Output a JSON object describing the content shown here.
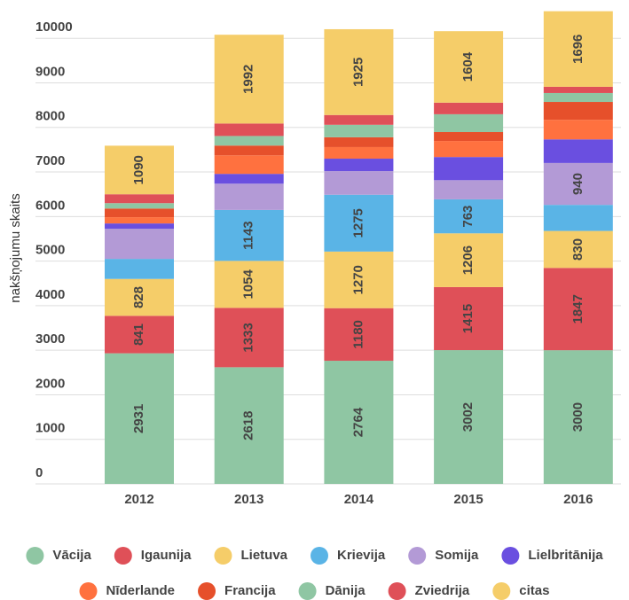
{
  "chart_data": {
    "type": "stacked_bar",
    "y_label": "nakšņojumu skaits",
    "categories": [
      "2012",
      "2013",
      "2014",
      "2015",
      "2016"
    ],
    "ylim": [
      0,
      10800
    ],
    "yticks": [
      0,
      1000,
      2000,
      3000,
      4000,
      5000,
      6000,
      7000,
      8000,
      9000,
      10000
    ],
    "grid": true,
    "legend": "bottom",
    "series": [
      {
        "name": "Vācija",
        "color": "#8fc6a3",
        "values": [
          2931,
          2618,
          2764,
          3002,
          3000
        ]
      },
      {
        "name": "Igaunija",
        "color": "#df5058",
        "values": [
          841,
          1333,
          1180,
          1415,
          1847
        ]
      },
      {
        "name": "Lietuva",
        "color": "#f5cd69",
        "values": [
          828,
          1054,
          1270,
          1206,
          830
        ]
      },
      {
        "name": "Krievija",
        "color": "#5ab4e6",
        "values": [
          450,
          1143,
          1275,
          763,
          585
        ]
      },
      {
        "name": "Somija",
        "color": "#b39ad6",
        "values": [
          675,
          590,
          530,
          430,
          940
        ]
      },
      {
        "name": "Lielbritānija",
        "color": "#6a4fe0",
        "values": [
          120,
          220,
          280,
          520,
          530
        ]
      },
      {
        "name": "Nīderlande",
        "color": "#ff713f",
        "values": [
          140,
          415,
          260,
          360,
          440
        ]
      },
      {
        "name": "Francija",
        "color": "#e6502b",
        "values": [
          195,
          220,
          220,
          200,
          400
        ]
      },
      {
        "name": "Dānija",
        "color": "#8fc6a3",
        "values": [
          120,
          215,
          280,
          400,
          200
        ]
      },
      {
        "name": "Zviedrija",
        "color": "#df5058",
        "values": [
          200,
          280,
          220,
          260,
          140
        ]
      },
      {
        "name": "citas",
        "color": "#f5cd69",
        "values": [
          1090,
          1992,
          1925,
          1604,
          1696
        ]
      }
    ]
  }
}
